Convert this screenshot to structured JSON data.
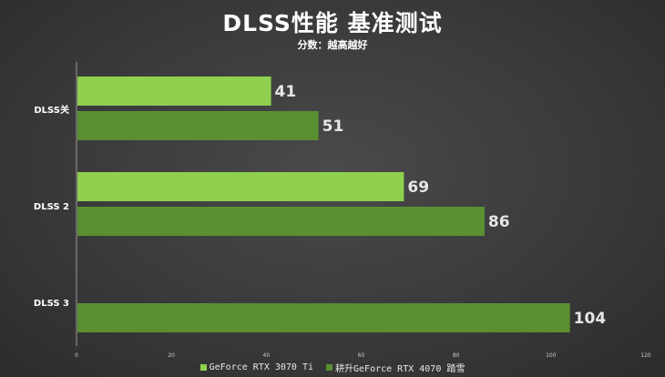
{
  "title": "DLSS性能 基准测试",
  "subtitle": "分数：越高越好",
  "colors": {
    "series1": "#8fd14f",
    "series2": "#5a8f32",
    "label": "#e6e6e6"
  },
  "chart_data": {
    "type": "bar",
    "orientation": "horizontal",
    "title": "DLSS性能 基准测试",
    "subtitle": "分数：越高越好",
    "categories": [
      "DLSS关",
      "DLSS 2",
      "DLSS 3"
    ],
    "series": [
      {
        "name": "GeForce RTX 3070 Ti",
        "values": [
          41,
          69,
          null
        ]
      },
      {
        "name": "耕升GeForce RTX 4070 踏雪",
        "values": [
          51,
          86,
          104
        ]
      }
    ],
    "xlim": [
      0,
      120
    ],
    "xticks": [
      0,
      20,
      40,
      60,
      80,
      100,
      120
    ],
    "grid": false,
    "legend": "bottom"
  }
}
